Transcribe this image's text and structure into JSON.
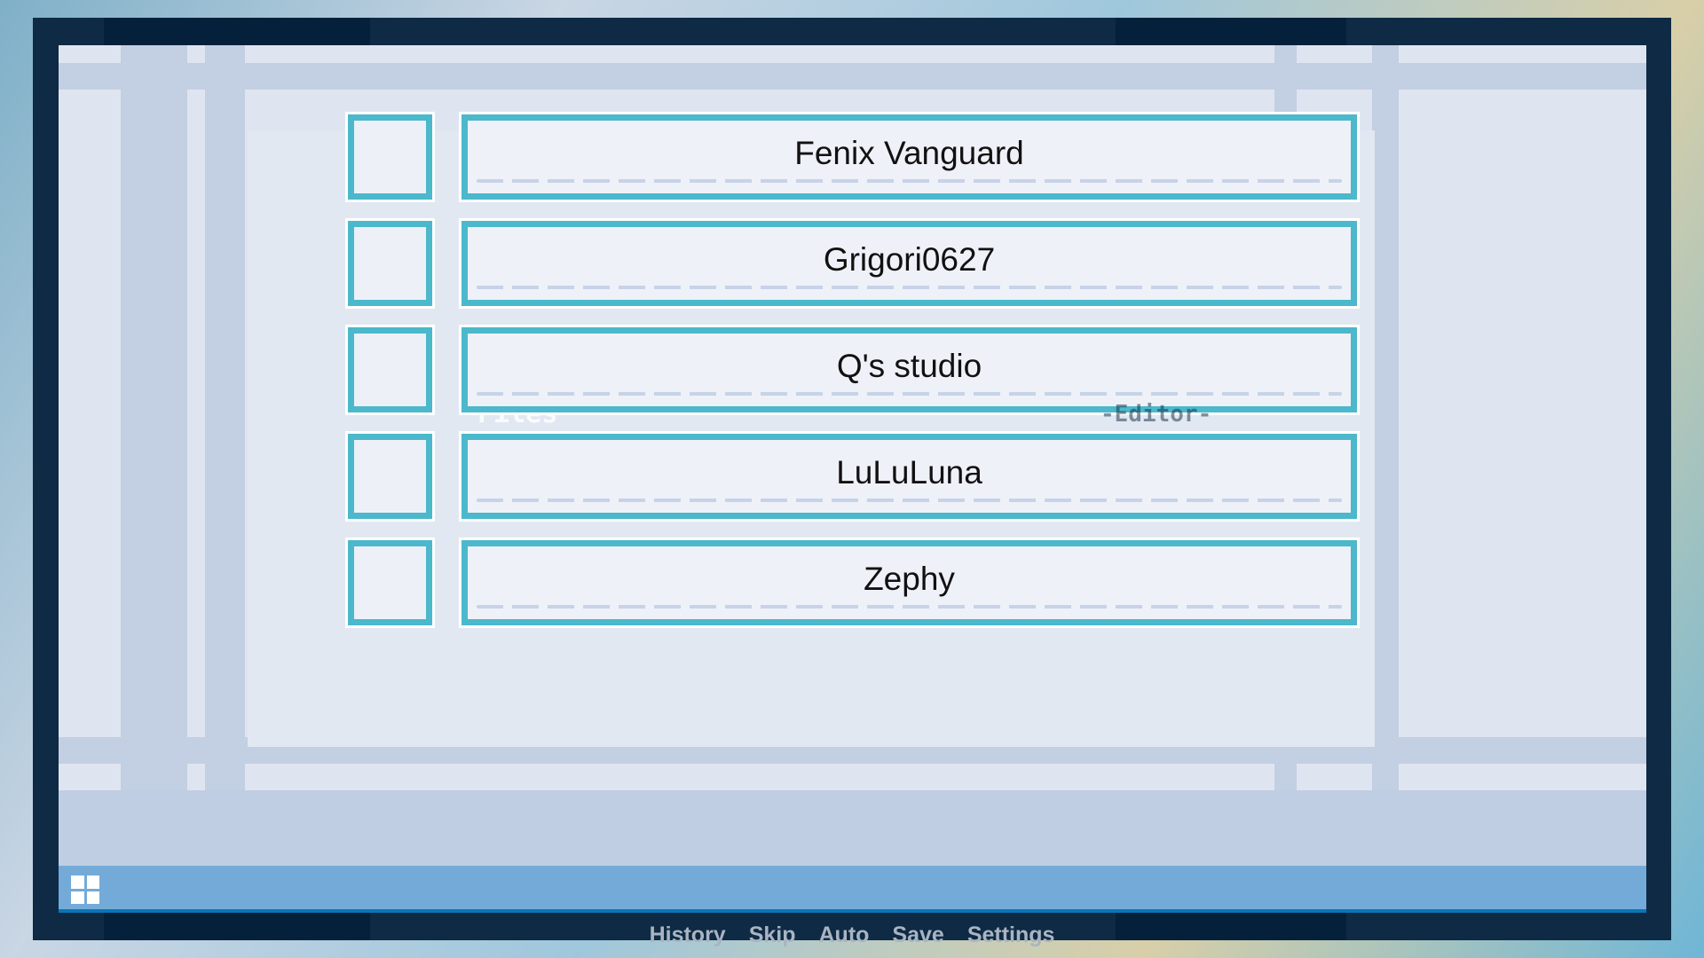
{
  "credits": {
    "names": [
      "Fenix Vanguard",
      "Grigori0627",
      "Q's studio",
      "LuLuLuna",
      "Zephy"
    ]
  },
  "background_labels": {
    "files": "Files",
    "editor": "-Editor-"
  },
  "menu": {
    "items": [
      "History",
      "Skip",
      "Auto",
      "Save",
      "Settings"
    ]
  },
  "icons": {
    "menu_button": "grid-icon"
  },
  "colors": {
    "accent": "#4bb8cb",
    "bar": "#74aad8",
    "frame": "#0e2a44"
  }
}
